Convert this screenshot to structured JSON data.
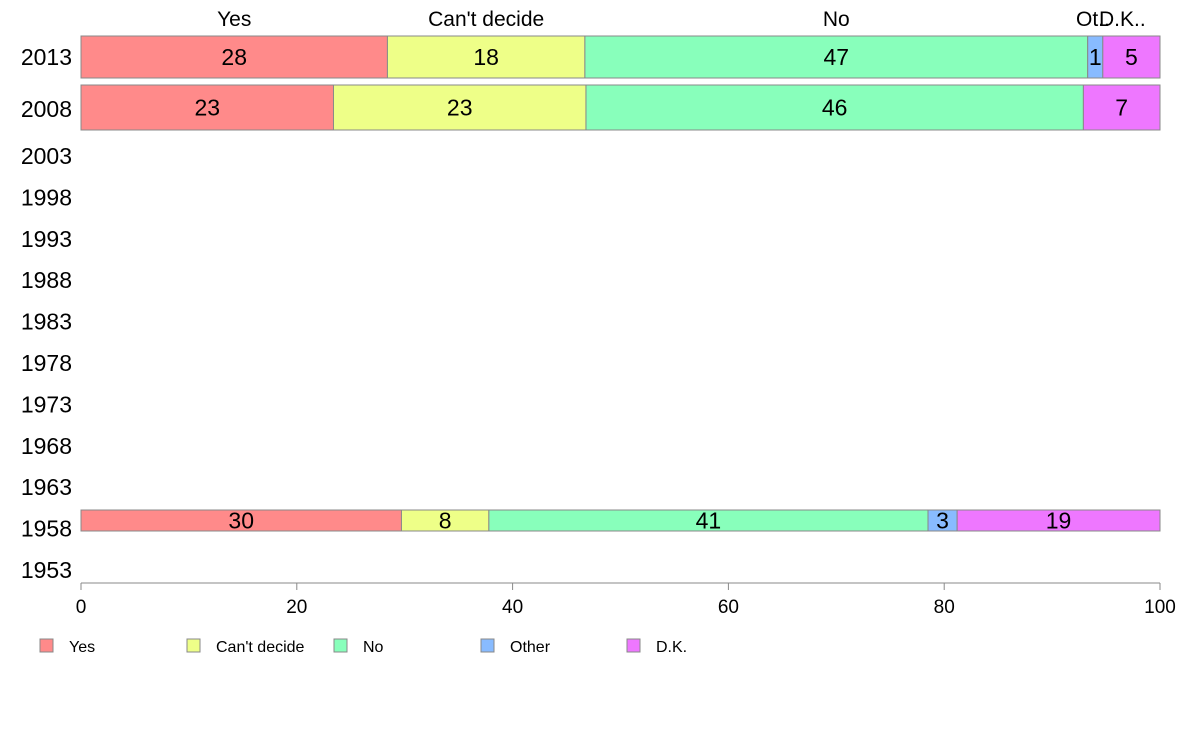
{
  "chart_data": {
    "type": "bar",
    "orientation": "horizontal",
    "stacked": true,
    "categories": [
      "2013",
      "2008",
      "2003",
      "1998",
      "1993",
      "1988",
      "1983",
      "1978",
      "1973",
      "1968",
      "1963",
      "1958",
      "1953"
    ],
    "series": [
      {
        "name": "Yes",
        "values": [
          28.4,
          23.4,
          null,
          null,
          null,
          null,
          null,
          null,
          null,
          null,
          null,
          29.7,
          null
        ],
        "labels": [
          "28",
          "23",
          "",
          "",
          "",
          "",
          "",
          "",
          "",
          "",
          "",
          "30",
          ""
        ]
      },
      {
        "name": "Can't decide",
        "values": [
          18.3,
          23.4,
          null,
          null,
          null,
          null,
          null,
          null,
          null,
          null,
          null,
          8.1,
          null
        ],
        "labels": [
          "18",
          "23",
          "",
          "",
          "",
          "",
          "",
          "",
          "",
          "",
          "",
          "8",
          ""
        ]
      },
      {
        "name": "No",
        "values": [
          46.6,
          46.1,
          null,
          null,
          null,
          null,
          null,
          null,
          null,
          null,
          null,
          40.7,
          null
        ],
        "labels": [
          "47",
          "46",
          "",
          "",
          "",
          "",
          "",
          "",
          "",
          "",
          "",
          "41",
          ""
        ]
      },
      {
        "name": "Other",
        "values": [
          1.4,
          0,
          null,
          null,
          null,
          null,
          null,
          null,
          null,
          null,
          null,
          2.7,
          null
        ],
        "labels": [
          "1",
          "",
          "",
          "",
          "",
          "",
          "",
          "",
          "",
          "",
          "",
          "3",
          ""
        ]
      },
      {
        "name": "D.K.",
        "values": [
          5.3,
          7.1,
          null,
          null,
          null,
          null,
          null,
          null,
          null,
          null,
          null,
          18.8,
          null
        ],
        "labels": [
          "5",
          "7",
          "",
          "",
          "",
          "",
          "",
          "",
          "",
          "",
          "",
          "19",
          ""
        ]
      }
    ],
    "top_labels": [
      "Yes",
      "Can't decide",
      "No",
      "Ot..",
      "D.K.."
    ],
    "colors": [
      "#ff8a8a",
      "#eeff88",
      "#88ffbb",
      "#88bbff",
      "#ee77ff"
    ],
    "xlim": [
      0,
      100
    ],
    "xticks": [
      "0",
      "20",
      "40",
      "60",
      "80",
      "100"
    ],
    "legend": [
      "Yes",
      "Can't decide",
      "No",
      "Other",
      "D.K."
    ],
    "legend_position": "bottom",
    "grid": false,
    "title": "",
    "xlabel": "",
    "ylabel": ""
  }
}
